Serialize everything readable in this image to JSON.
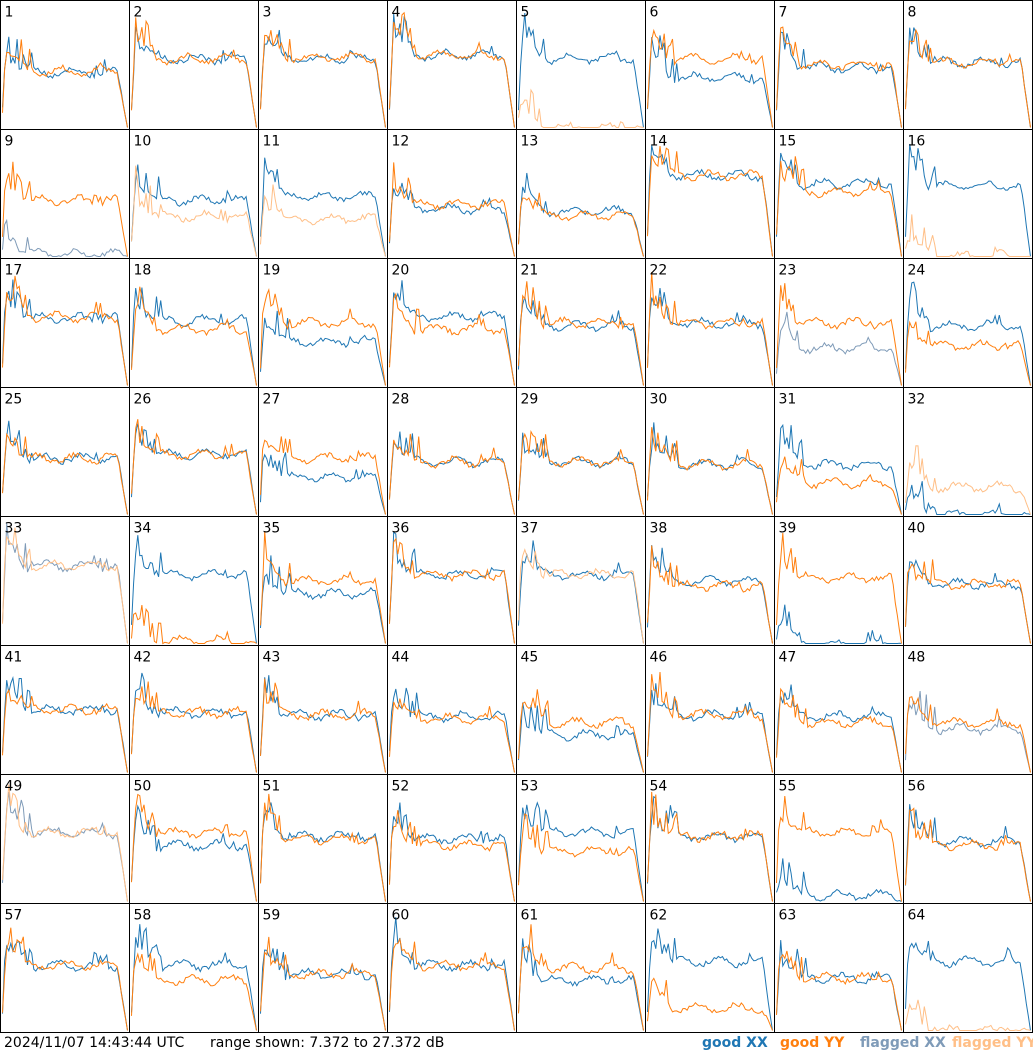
{
  "colors": {
    "good_xx": "#1f77b4",
    "good_yy": "#ff7f0e",
    "flagged_xx": "#7f9bb8",
    "flagged_yy": "#ffbf87",
    "frame": "#000000"
  },
  "footer": {
    "timestamp": "2024/11/07 14:43:44 UTC",
    "range_text": "range shown: 7.372 to 27.372 dB"
  },
  "legend": {
    "good_xx": "good XX",
    "good_yy": "good YY",
    "flagged_xx": "flagged XX",
    "flagged_yy": "flagged YY"
  },
  "chart_data": {
    "type": "line",
    "layout": "8x8 grid of small-multiple spectra",
    "y_range_db": [
      7.372,
      27.372
    ],
    "series_types": [
      "good XX",
      "good YY",
      "flagged XX",
      "flagged YY"
    ],
    "panels": [
      {
        "id": "1",
        "label": "1",
        "xx": "good",
        "yy": "good",
        "xx_level": 0.44,
        "yy_level": 0.45
      },
      {
        "id": "2",
        "label": "2",
        "xx": "good",
        "yy": "good",
        "xx_level": 0.55,
        "yy_level": 0.55
      },
      {
        "id": "3",
        "label": "3",
        "xx": "good",
        "yy": "good",
        "xx_level": 0.55,
        "yy_level": 0.56
      },
      {
        "id": "4",
        "label": "4",
        "xx": "good",
        "yy": "good",
        "xx_level": 0.58,
        "yy_level": 0.58
      },
      {
        "id": "5",
        "label": "5",
        "xx": "good",
        "yy": "flagged",
        "xx_level": 0.55,
        "yy_level": 0.0
      },
      {
        "id": "6",
        "label": "6",
        "xx": "good",
        "yy": "good",
        "xx_level": 0.4,
        "yy_level": 0.55
      },
      {
        "id": "7",
        "label": "7",
        "xx": "good",
        "yy": "good",
        "xx_level": 0.48,
        "yy_level": 0.5
      },
      {
        "id": "8",
        "label": "8",
        "xx": "good",
        "yy": "good",
        "xx_level": 0.52,
        "yy_level": 0.52
      },
      {
        "id": "9",
        "label": "9",
        "xx": "flagged",
        "yy": "good",
        "xx_level": 0.02,
        "yy_level": 0.45
      },
      {
        "id": "10",
        "label": "10",
        "xx": "good",
        "yy": "flagged",
        "xx_level": 0.45,
        "yy_level": 0.32
      },
      {
        "id": "11",
        "label": "11",
        "xx": "good",
        "yy": "flagged",
        "xx_level": 0.48,
        "yy_level": 0.3
      },
      {
        "id": "12",
        "label": "12",
        "xx": "good",
        "yy": "good",
        "xx_level": 0.38,
        "yy_level": 0.42
      },
      {
        "id": "13",
        "label": "13",
        "xx": "good",
        "yy": "good",
        "xx_level": 0.36,
        "yy_level": 0.33
      },
      {
        "id": "14",
        "label": "14",
        "xx": "good",
        "yy": "good",
        "xx_level": 0.65,
        "yy_level": 0.65
      },
      {
        "id": "15",
        "label": "15",
        "xx": "good",
        "yy": "good",
        "xx_level": 0.58,
        "yy_level": 0.52
      },
      {
        "id": "16",
        "label": "16",
        "xx": "good",
        "yy": "flagged",
        "xx_level": 0.57,
        "yy_level": 0.0
      },
      {
        "id": "17",
        "label": "17",
        "xx": "good",
        "yy": "good",
        "xx_level": 0.54,
        "yy_level": 0.55
      },
      {
        "id": "18",
        "label": "18",
        "xx": "good",
        "yy": "good",
        "xx_level": 0.52,
        "yy_level": 0.45
      },
      {
        "id": "19",
        "label": "19",
        "xx": "good",
        "yy": "good",
        "xx_level": 0.35,
        "yy_level": 0.5
      },
      {
        "id": "20",
        "label": "20",
        "xx": "good",
        "yy": "good",
        "xx_level": 0.55,
        "yy_level": 0.45
      },
      {
        "id": "21",
        "label": "21",
        "xx": "good",
        "yy": "good",
        "xx_level": 0.48,
        "yy_level": 0.5
      },
      {
        "id": "22",
        "label": "22",
        "xx": "good",
        "yy": "good",
        "xx_level": 0.5,
        "yy_level": 0.5
      },
      {
        "id": "23",
        "label": "23",
        "xx": "flagged",
        "yy": "good",
        "xx_level": 0.3,
        "yy_level": 0.5
      },
      {
        "id": "24",
        "label": "24",
        "xx": "good",
        "yy": "good",
        "xx_level": 0.48,
        "yy_level": 0.32
      },
      {
        "id": "25",
        "label": "25",
        "xx": "good",
        "yy": "good",
        "xx_level": 0.45,
        "yy_level": 0.45
      },
      {
        "id": "26",
        "label": "26",
        "xx": "good",
        "yy": "good",
        "xx_level": 0.48,
        "yy_level": 0.48
      },
      {
        "id": "27",
        "label": "27",
        "xx": "good",
        "yy": "good",
        "xx_level": 0.3,
        "yy_level": 0.45
      },
      {
        "id": "28",
        "label": "28",
        "xx": "good",
        "yy": "good",
        "xx_level": 0.42,
        "yy_level": 0.42
      },
      {
        "id": "29",
        "label": "29",
        "xx": "good",
        "yy": "good",
        "xx_level": 0.42,
        "yy_level": 0.42
      },
      {
        "id": "30",
        "label": "30",
        "xx": "good",
        "yy": "good",
        "xx_level": 0.4,
        "yy_level": 0.4
      },
      {
        "id": "31",
        "label": "31",
        "xx": "good",
        "yy": "good",
        "xx_level": 0.4,
        "yy_level": 0.25
      },
      {
        "id": "32",
        "label": "32",
        "xx": "good",
        "yy": "flagged",
        "xx_level": 0.0,
        "yy_level": 0.22
      },
      {
        "id": "33",
        "label": "33",
        "xx": "flagged",
        "yy": "flagged",
        "xx_level": 0.62,
        "yy_level": 0.62
      },
      {
        "id": "34",
        "label": "34",
        "xx": "good",
        "yy": "good",
        "xx_level": 0.55,
        "yy_level": 0.02
      },
      {
        "id": "35",
        "label": "35",
        "xx": "good",
        "yy": "good",
        "xx_level": 0.4,
        "yy_level": 0.5
      },
      {
        "id": "36",
        "label": "36",
        "xx": "good",
        "yy": "good",
        "xx_level": 0.55,
        "yy_level": 0.55
      },
      {
        "id": "37",
        "label": "37",
        "xx": "good",
        "yy": "flagged",
        "xx_level": 0.55,
        "yy_level": 0.55
      },
      {
        "id": "38",
        "label": "38",
        "xx": "good",
        "yy": "good",
        "xx_level": 0.5,
        "yy_level": 0.46
      },
      {
        "id": "39",
        "label": "39",
        "xx": "good",
        "yy": "good",
        "xx_level": 0.0,
        "yy_level": 0.52
      },
      {
        "id": "40",
        "label": "40",
        "xx": "good",
        "yy": "good",
        "xx_level": 0.48,
        "yy_level": 0.47
      },
      {
        "id": "41",
        "label": "41",
        "xx": "good",
        "yy": "good",
        "xx_level": 0.5,
        "yy_level": 0.5
      },
      {
        "id": "42",
        "label": "42",
        "xx": "good",
        "yy": "good",
        "xx_level": 0.48,
        "yy_level": 0.48
      },
      {
        "id": "43",
        "label": "43",
        "xx": "good",
        "yy": "good",
        "xx_level": 0.46,
        "yy_level": 0.46
      },
      {
        "id": "44",
        "label": "44",
        "xx": "good",
        "yy": "good",
        "xx_level": 0.45,
        "yy_level": 0.43
      },
      {
        "id": "45",
        "label": "45",
        "xx": "good",
        "yy": "good",
        "xx_level": 0.3,
        "yy_level": 0.4
      },
      {
        "id": "46",
        "label": "46",
        "xx": "good",
        "yy": "good",
        "xx_level": 0.46,
        "yy_level": 0.46
      },
      {
        "id": "47",
        "label": "47",
        "xx": "good",
        "yy": "good",
        "xx_level": 0.45,
        "yy_level": 0.4
      },
      {
        "id": "48",
        "label": "48",
        "xx": "flagged",
        "yy": "good",
        "xx_level": 0.35,
        "yy_level": 0.4
      },
      {
        "id": "49",
        "label": "49",
        "xx": "flagged",
        "yy": "flagged",
        "xx_level": 0.55,
        "yy_level": 0.55
      },
      {
        "id": "50",
        "label": "50",
        "xx": "good",
        "yy": "good",
        "xx_level": 0.45,
        "yy_level": 0.55
      },
      {
        "id": "51",
        "label": "51",
        "xx": "good",
        "yy": "good",
        "xx_level": 0.52,
        "yy_level": 0.5
      },
      {
        "id": "52",
        "label": "52",
        "xx": "good",
        "yy": "good",
        "xx_level": 0.5,
        "yy_level": 0.45
      },
      {
        "id": "53",
        "label": "53",
        "xx": "good",
        "yy": "good",
        "xx_level": 0.55,
        "yy_level": 0.4
      },
      {
        "id": "54",
        "label": "54",
        "xx": "good",
        "yy": "good",
        "xx_level": 0.52,
        "yy_level": 0.52
      },
      {
        "id": "55",
        "label": "55",
        "xx": "good",
        "yy": "good",
        "xx_level": 0.05,
        "yy_level": 0.55
      },
      {
        "id": "56",
        "label": "56",
        "xx": "good",
        "yy": "good",
        "xx_level": 0.48,
        "yy_level": 0.45
      },
      {
        "id": "57",
        "label": "57",
        "xx": "good",
        "yy": "good",
        "xx_level": 0.52,
        "yy_level": 0.52
      },
      {
        "id": "58",
        "label": "58",
        "xx": "good",
        "yy": "good",
        "xx_level": 0.52,
        "yy_level": 0.4
      },
      {
        "id": "59",
        "label": "59",
        "xx": "good",
        "yy": "good",
        "xx_level": 0.45,
        "yy_level": 0.45
      },
      {
        "id": "60",
        "label": "60",
        "xx": "good",
        "yy": "good",
        "xx_level": 0.52,
        "yy_level": 0.52
      },
      {
        "id": "61",
        "label": "61",
        "xx": "good",
        "yy": "good",
        "xx_level": 0.4,
        "yy_level": 0.5
      },
      {
        "id": "62",
        "label": "62",
        "xx": "good",
        "yy": "good",
        "xx_level": 0.55,
        "yy_level": 0.18
      },
      {
        "id": "63",
        "label": "63",
        "xx": "good",
        "yy": "good",
        "xx_level": 0.42,
        "yy_level": 0.42
      },
      {
        "id": "64",
        "label": "64",
        "xx": "good",
        "yy": "flagged",
        "xx_level": 0.55,
        "yy_level": 0.0
      }
    ]
  }
}
